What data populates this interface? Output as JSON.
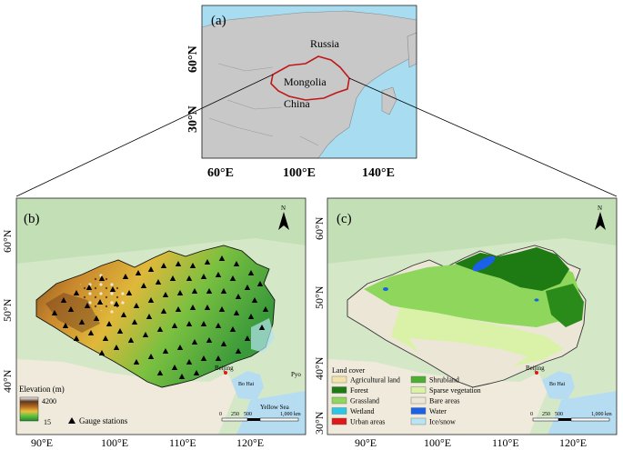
{
  "panel_a": {
    "label": "(a)",
    "countries": {
      "russia": "Russia",
      "mongolia": "Mongolia",
      "china": "China"
    },
    "lat_ticks": [
      "60°N",
      "30°N"
    ],
    "lon_ticks": [
      "60°E",
      "100°E",
      "140°E"
    ]
  },
  "panel_b": {
    "label": "(b)",
    "north": "N",
    "lat_ticks": [
      "60°N",
      "50°N",
      "40°N"
    ],
    "lon_ticks": [
      "90°E",
      "100°E",
      "110°E",
      "120°E"
    ],
    "beijing": "Beijing",
    "bohai": "Bo Hai",
    "yellow_sea": "Yellow Sea",
    "pyo": "Pyo",
    "legend": {
      "title": "Elevation (m)",
      "max": "4200",
      "min": "15",
      "stations": "Gauge stations"
    },
    "scale": [
      "0",
      "250",
      "500",
      "1,000 km"
    ]
  },
  "panel_c": {
    "label": "(c)",
    "north": "N",
    "lat_ticks": [
      "60°N",
      "50°N",
      "40°N",
      "30°N"
    ],
    "lon_ticks": [
      "90°E",
      "100°E",
      "110°E",
      "120°E"
    ],
    "beijing": "Beijing",
    "bohai": "Bo Hai",
    "legend": {
      "title": "Land cover",
      "items": [
        {
          "label": "Agricultural land",
          "color": "#f3e3a8"
        },
        {
          "label": "Shrubland",
          "color": "#4caf2f"
        },
        {
          "label": "Forest",
          "color": "#1e7a12"
        },
        {
          "label": "Sparse vegetation",
          "color": "#d9f2a8"
        },
        {
          "label": "Grassland",
          "color": "#8ed65c"
        },
        {
          "label": "Bare areas",
          "color": "#ece6d6"
        },
        {
          "label": "Wetland",
          "color": "#28c8e8"
        },
        {
          "label": "Water",
          "color": "#1a60e8"
        },
        {
          "label": "Urban areas",
          "color": "#e01818"
        },
        {
          "label": "Ice/snow",
          "color": "#b8e4f4"
        }
      ]
    },
    "scale": [
      "0",
      "250",
      "500",
      "1,000 km"
    ]
  }
}
